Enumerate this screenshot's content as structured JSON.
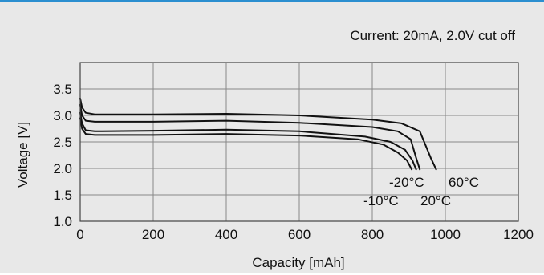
{
  "chart_data": {
    "type": "line",
    "annotation": "Current: 20mA, 2.0V cut off",
    "xlabel": "Capacity [mAh]",
    "ylabel": "Voltage [V]",
    "xlim": [
      0,
      1200
    ],
    "ylim": [
      1.0,
      4.0
    ],
    "x_ticks": [
      0,
      200,
      400,
      600,
      800,
      1000,
      1200
    ],
    "x_tick_labels": [
      "0",
      "200",
      "400",
      "600",
      "800",
      "1000",
      "1200"
    ],
    "y_ticks": [
      1.0,
      1.5,
      2.0,
      2.5,
      3.0,
      3.5
    ],
    "y_tick_labels": [
      "1.0",
      "1.5",
      "2.0",
      "2.5",
      "3.0",
      "3.5"
    ],
    "grid": true,
    "series": [
      {
        "name": "60°C",
        "points": [
          [
            0,
            3.32
          ],
          [
            5,
            3.15
          ],
          [
            15,
            3.05
          ],
          [
            40,
            3.02
          ],
          [
            200,
            3.02
          ],
          [
            400,
            3.03
          ],
          [
            600,
            3.0
          ],
          [
            800,
            2.92
          ],
          [
            880,
            2.85
          ],
          [
            930,
            2.7
          ],
          [
            960,
            2.2
          ],
          [
            975,
            1.98
          ]
        ]
      },
      {
        "name": "20°C",
        "points": [
          [
            0,
            3.2
          ],
          [
            5,
            3.0
          ],
          [
            15,
            2.9
          ],
          [
            40,
            2.88
          ],
          [
            200,
            2.88
          ],
          [
            400,
            2.9
          ],
          [
            600,
            2.86
          ],
          [
            800,
            2.78
          ],
          [
            870,
            2.7
          ],
          [
            905,
            2.55
          ],
          [
            920,
            2.2
          ],
          [
            930,
            1.98
          ]
        ]
      },
      {
        "name": "-20°C",
        "points": [
          [
            0,
            3.05
          ],
          [
            5,
            2.85
          ],
          [
            15,
            2.72
          ],
          [
            40,
            2.7
          ],
          [
            200,
            2.71
          ],
          [
            400,
            2.73
          ],
          [
            600,
            2.7
          ],
          [
            780,
            2.6
          ],
          [
            850,
            2.5
          ],
          [
            890,
            2.35
          ],
          [
            910,
            2.15
          ],
          [
            920,
            1.98
          ]
        ]
      },
      {
        "name": "-10°C",
        "points": [
          [
            0,
            2.95
          ],
          [
            5,
            2.75
          ],
          [
            15,
            2.65
          ],
          [
            40,
            2.63
          ],
          [
            200,
            2.63
          ],
          [
            400,
            2.65
          ],
          [
            600,
            2.62
          ],
          [
            760,
            2.55
          ],
          [
            830,
            2.45
          ],
          [
            870,
            2.3
          ],
          [
            895,
            2.15
          ],
          [
            908,
            1.98
          ]
        ]
      }
    ],
    "curve_labels": [
      "-20°C",
      "60°C",
      "-10°C",
      "20°C"
    ]
  }
}
